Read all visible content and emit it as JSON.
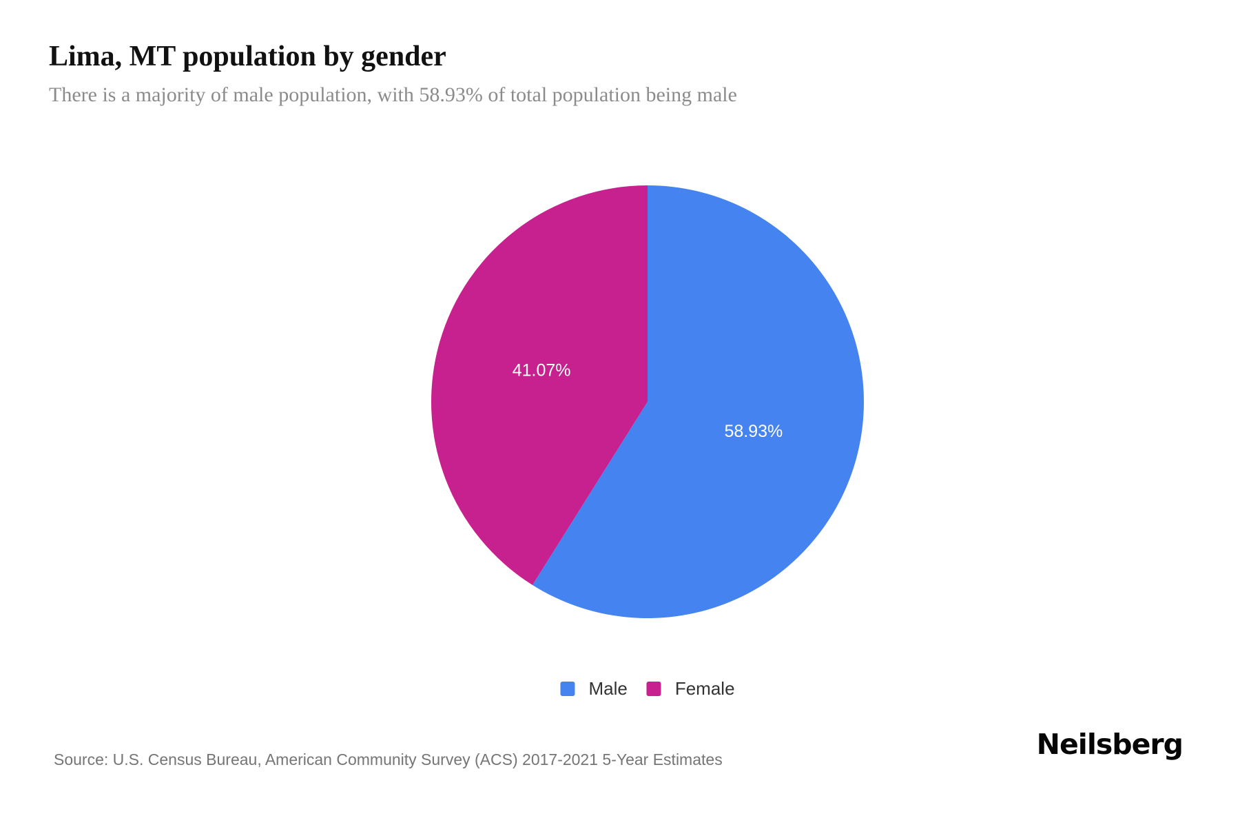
{
  "header": {
    "title": "Lima, MT population by gender",
    "subtitle": "There is a majority of male population, with 58.93% of total population being male"
  },
  "chart_data": {
    "type": "pie",
    "title": "Lima, MT population by gender",
    "series": [
      {
        "name": "Male",
        "value": 58.93,
        "label": "58.93%",
        "color": "#4584F0"
      },
      {
        "name": "Female",
        "value": 41.07,
        "label": "41.07%",
        "color": "#C7208F"
      }
    ],
    "start_angle_deg": 0,
    "direction": "clockwise",
    "label_position_radius_fraction": 0.51,
    "label_color": "#ffffff",
    "legend_position": "bottom"
  },
  "legend": {
    "items": [
      {
        "label": "Male",
        "color": "#4584F0"
      },
      {
        "label": "Female",
        "color": "#C7208F"
      }
    ]
  },
  "footer": {
    "source": "Source: U.S. Census Bureau, American Community Survey (ACS) 2017-2021 5-Year Estimates",
    "brand": "Neilsberg"
  }
}
